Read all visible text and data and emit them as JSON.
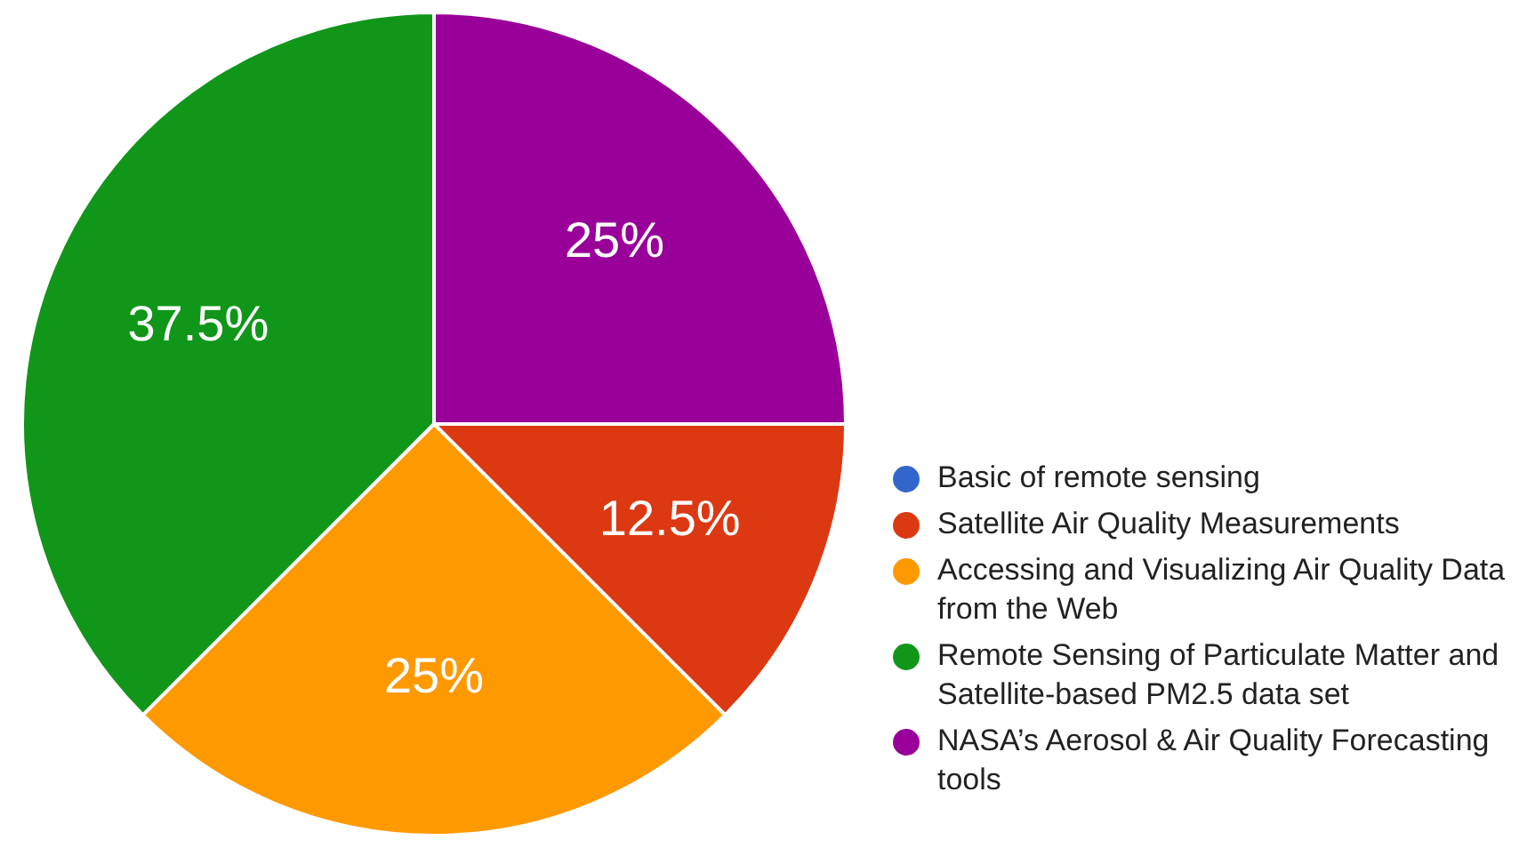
{
  "chart_data": {
    "type": "pie",
    "categories": [
      "Basic of remote sensing",
      "Satellite Air Quality Measurements",
      "Accessing and Visualizing Air Quality Data from the Web",
      "Remote Sensing of Particulate Matter and Satellite-based PM2.5 data set",
      "NASA’s Aerosol & Air Quality Forecasting tools"
    ],
    "values": [
      0,
      12.5,
      25,
      37.5,
      25
    ],
    "colors": [
      "#3366cc",
      "#dc3912",
      "#ff9900",
      "#109618",
      "#990099"
    ],
    "value_labels": [
      null,
      "12.5%",
      "25%",
      "37.5%",
      "25%"
    ],
    "legend": "bottom right"
  }
}
